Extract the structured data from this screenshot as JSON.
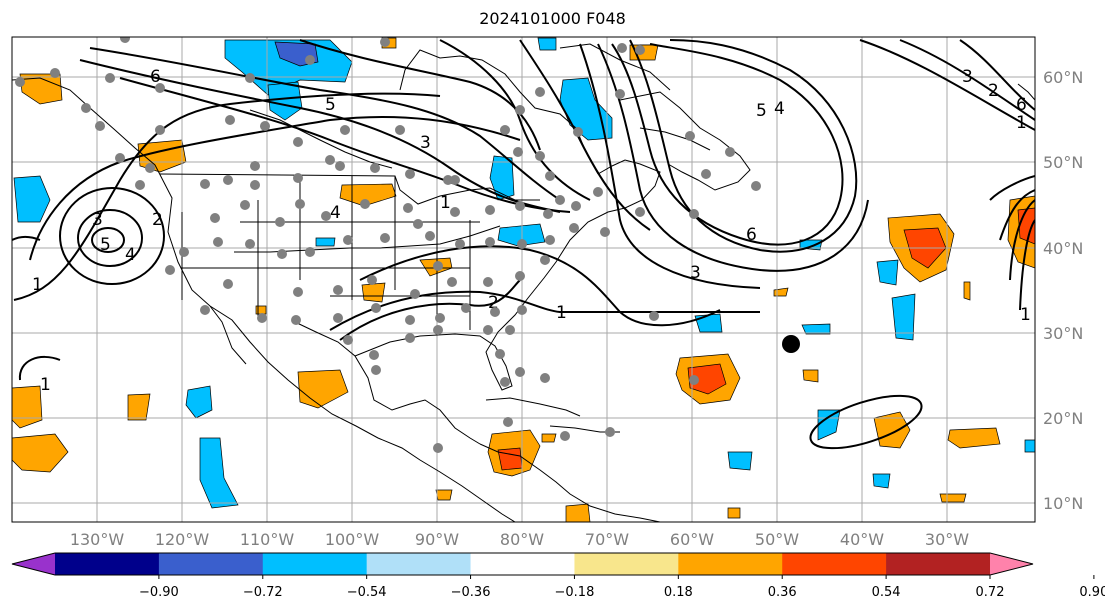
{
  "title": "2024101000 F048",
  "longitude_labels": [
    "130°W",
    "120°W",
    "110°W",
    "100°W",
    "90°W",
    "80°W",
    "70°W",
    "60°W",
    "50°W",
    "40°W",
    "30°W"
  ],
  "latitude_labels": [
    "60°N",
    "50°N",
    "40°N",
    "30°N",
    "20°N",
    "10°N"
  ],
  "colorbar": {
    "tick_labels": [
      "−0.90",
      "−0.72",
      "−0.54",
      "−0.36",
      "−0.18",
      "0.18",
      "0.36",
      "0.54",
      "0.72",
      "0.90"
    ],
    "colors": [
      "#9932cc",
      "#00008b",
      "#3a5fcd",
      "#00bfff",
      "#b0e0f8",
      "#ffffff",
      "#f8e68c",
      "#ffa500",
      "#ff4500",
      "#b22222",
      "#ff82ab"
    ]
  },
  "contour_labels": [
    "6",
    "5",
    "4",
    "3",
    "2",
    "1",
    "3",
    "5",
    "4",
    "2",
    "1",
    "1",
    "1",
    "6",
    "3",
    "5",
    "4",
    "6",
    "3",
    "2",
    "1",
    "1"
  ],
  "colors": {
    "orange": "#ffa500",
    "red_orange": "#ff4500",
    "light_yellow": "#f8e68c",
    "blue": "#00bfff",
    "medium_blue": "#3a5fcd",
    "grid": "#a9a9a9",
    "station": "#808080",
    "marker": "#000000"
  }
}
